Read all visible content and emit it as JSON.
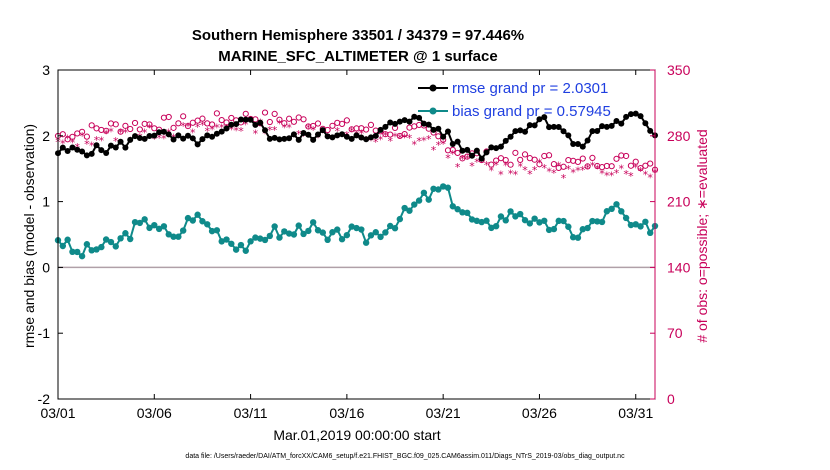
{
  "chart_data": {
    "type": "line",
    "title": "Southern Hemisphere 33501 / 34379 = 97.446%",
    "subtitle": "MARINE_SFC_ALTIMETER @ 1 surface",
    "xlabel": "Mar.01,2019 00:00:00 start",
    "ylabel": "rmse and bias (model - observation)",
    "y2label": "# of obs: o=possible; ∗=evaluated",
    "footnote": "data file: /Users/raeder/DAI/ATM_forcXX/CAM6_setup/f.e21.FHIST_BGC.f09_025.CAM6assim.011/Diags_NTrS_2019-03/obs_diag_output.nc",
    "xlim": [
      1,
      32
    ],
    "ylim": [
      -2,
      3
    ],
    "y2lim": [
      0,
      350
    ],
    "x_ticks": [
      1,
      6,
      11,
      16,
      21,
      26,
      31
    ],
    "x_tick_labels": [
      "03/01",
      "03/06",
      "03/11",
      "03/16",
      "03/21",
      "03/26",
      "03/31"
    ],
    "y_ticks": [
      -2,
      -1,
      0,
      1,
      2,
      3
    ],
    "y_tick_labels": [
      "-2",
      "-1",
      "0",
      "1",
      "2",
      "3"
    ],
    "y2_ticks": [
      0,
      70,
      140,
      210,
      280,
      350
    ],
    "y2_tick_labels": [
      "0",
      "70",
      "140",
      "210",
      "280",
      "350"
    ],
    "legend": [
      {
        "label": "rmse grand pr = 2.0301",
        "color": "#000000",
        "marker": "circle"
      },
      {
        "label": "bias grand pr = 0.57945",
        "color": "#0f8a8a",
        "marker": "circle"
      }
    ],
    "colors": {
      "rmse": "#000000",
      "bias": "#0f8a8a",
      "obs": "#c8005a",
      "zero": "#b0a0a8"
    },
    "series": [
      {
        "name": "rmse",
        "key_points": {
          "x": [
            1,
            2,
            3,
            4,
            5,
            6,
            7,
            8,
            9,
            10,
            11,
            12,
            13,
            14,
            15,
            16,
            17,
            18,
            19,
            20,
            21,
            22,
            23,
            24,
            25,
            26,
            27,
            28,
            29,
            30,
            31,
            32
          ],
          "y": [
            1.75,
            1.78,
            1.78,
            1.82,
            1.95,
            2.05,
            1.95,
            1.92,
            1.95,
            2.1,
            2.3,
            2.0,
            1.95,
            2.0,
            2.02,
            2.05,
            1.9,
            2.1,
            2.3,
            2.2,
            2.05,
            1.8,
            1.72,
            1.9,
            2.1,
            2.25,
            2.15,
            1.8,
            2.1,
            2.2,
            2.3,
            2.05
          ]
        }
      },
      {
        "name": "bias",
        "key_points": {
          "x": [
            1,
            2,
            3,
            4,
            5,
            6,
            7,
            8,
            9,
            10,
            11,
            12,
            13,
            14,
            15,
            16,
            17,
            18,
            19,
            20,
            21,
            22,
            23,
            24,
            25,
            26,
            27,
            28,
            29,
            30,
            31,
            32
          ],
          "y": [
            0.45,
            0.2,
            0.3,
            0.35,
            0.6,
            0.7,
            0.4,
            0.8,
            0.6,
            0.4,
            0.3,
            0.55,
            0.5,
            0.65,
            0.4,
            0.55,
            0.45,
            0.6,
            0.8,
            1.05,
            1.2,
            0.85,
            0.6,
            0.75,
            0.85,
            0.6,
            0.65,
            0.5,
            0.7,
            0.9,
            0.55,
            0.65
          ]
        }
      },
      {
        "name": "obs_possible",
        "key_points": {
          "x": [
            1,
            4,
            8,
            11,
            14,
            18,
            20,
            21,
            22,
            24,
            26,
            28,
            30,
            32
          ],
          "y": [
            280,
            290,
            295,
            300,
            295,
            285,
            285,
            275,
            260,
            255,
            255,
            250,
            255,
            250
          ]
        }
      },
      {
        "name": "obs_evaluated",
        "key_points": {
          "x": [
            1,
            4,
            8,
            11,
            14,
            18,
            20,
            21,
            22,
            24,
            26,
            28,
            30,
            32
          ],
          "y": [
            270,
            280,
            285,
            290,
            285,
            275,
            275,
            265,
            250,
            245,
            245,
            240,
            245,
            240
          ]
        }
      }
    ]
  }
}
